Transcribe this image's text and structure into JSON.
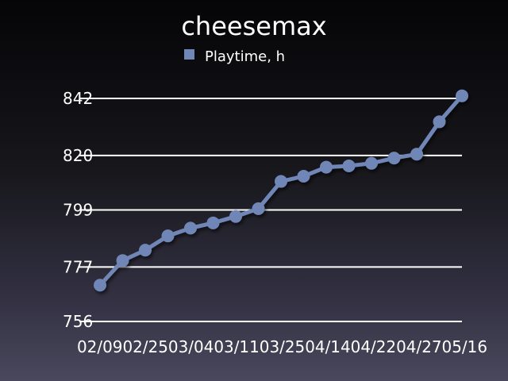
{
  "chart_data": {
    "type": "line",
    "title": "cheesemax",
    "xlabel": "",
    "ylabel": "",
    "categories": [
      "02/09",
      "",
      "02/25",
      "",
      "03/04",
      "",
      "03/11",
      "",
      "03/25",
      "",
      "04/14",
      "",
      "04/22",
      "",
      "04/27",
      "",
      "05/16"
    ],
    "series": [
      {
        "name": "Playtime, h",
        "values": [
          770,
          779.5,
          783.5,
          789,
          792,
          794,
          796.5,
          799.5,
          810,
          812,
          815.5,
          816,
          817,
          819,
          820.5,
          833,
          843
        ]
      }
    ],
    "y_ticks": [
      "756",
      "777",
      "799",
      "820",
      "842"
    ],
    "y_tick_values": [
      756,
      777,
      799,
      820,
      842
    ],
    "ylim": [
      756,
      842
    ],
    "grid": true,
    "legend_position": "top",
    "colors": {
      "series": "#6f86b6",
      "grid": "#ffffff",
      "text": "#ffffff"
    }
  }
}
